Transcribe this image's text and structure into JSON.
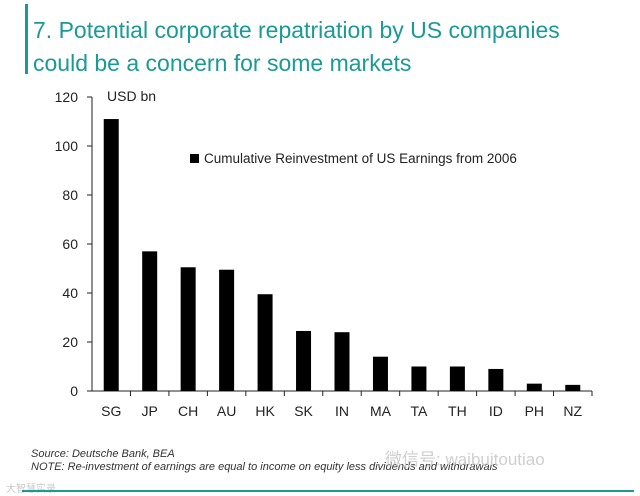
{
  "title": {
    "line1": "7. Potential corporate repatriation by US companies",
    "line2": "could be a concern for some markets"
  },
  "chart_data": {
    "type": "bar",
    "title": "7. Potential corporate repatriation by US companies could be a concern for some markets",
    "ylabel": "USD bn",
    "xlabel": "",
    "ylim": [
      0,
      120
    ],
    "yticks": [
      0,
      20,
      40,
      60,
      80,
      100,
      120
    ],
    "categories": [
      "SG",
      "JP",
      "CH",
      "AU",
      "HK",
      "SK",
      "IN",
      "MA",
      "TA",
      "TH",
      "ID",
      "PH",
      "NZ"
    ],
    "series": [
      {
        "name": "Cumulative Reinvestment of US Earnings from 2006",
        "values": [
          111,
          57,
          50.5,
          49.5,
          39.5,
          24.5,
          24,
          14,
          10,
          10,
          9,
          3,
          2.5
        ]
      }
    ],
    "legend": "top-right",
    "grid": false
  },
  "source": "Source: Deutsche Bank, BEA",
  "note": "NOTE: Re-investment of earnings are equal to income on equity less dividends and withdrawals",
  "watermark": "微信号: waibuitoutiao",
  "watermark_left": "大智慧实录",
  "colors": {
    "accent": "#1a9a96",
    "bar": "#000000"
  }
}
